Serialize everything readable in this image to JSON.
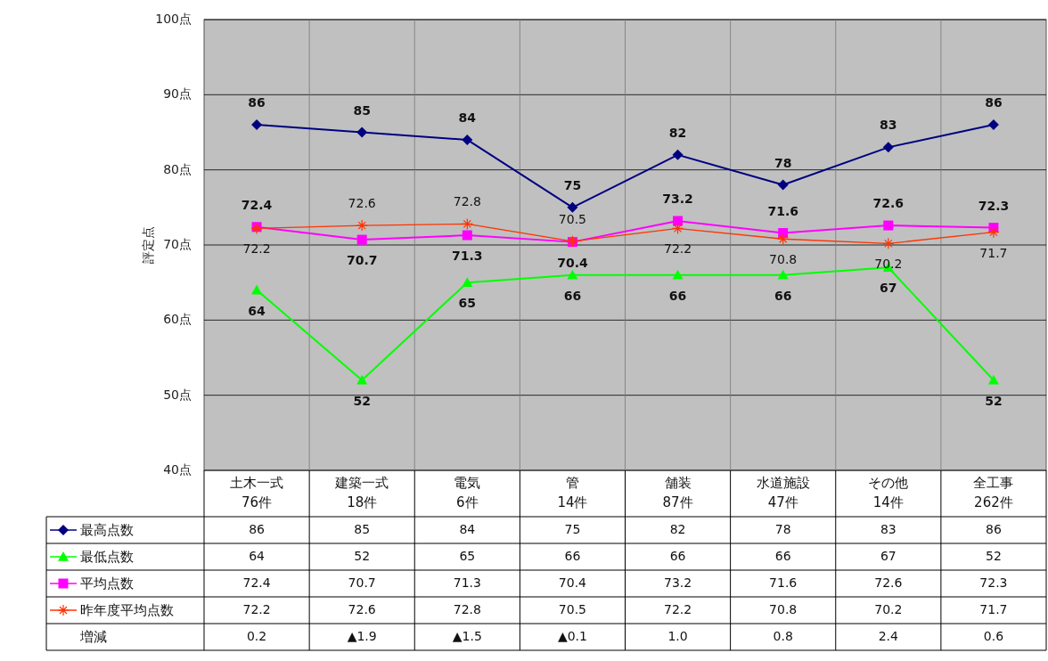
{
  "chart_data": {
    "type": "line",
    "ylabel": "評定点",
    "categories": [
      "土木一式\n76件",
      "建築一式\n18件",
      "電気\n6件",
      "管\n14件",
      "舗装\n87件",
      "水道施設\n47件",
      "その他\n14件",
      "全工事\n262件"
    ],
    "series": [
      {
        "name": "最高点数",
        "color": "#000080",
        "marker": "diamond",
        "values": [
          86,
          85,
          84,
          75,
          82,
          78,
          83,
          86
        ],
        "value_labels": [
          "86",
          "85",
          "84",
          "75",
          "82",
          "78",
          "83",
          "86"
        ]
      },
      {
        "name": "最低点数",
        "color": "#00ff00",
        "marker": "triangle",
        "values": [
          64,
          52,
          65,
          66,
          66,
          66,
          67,
          52
        ],
        "value_labels": [
          "64",
          "52",
          "65",
          "66",
          "66",
          "66",
          "67",
          "52"
        ]
      },
      {
        "name": "平均点数",
        "color": "#ff00ff",
        "marker": "square",
        "values": [
          72.4,
          70.7,
          71.3,
          70.4,
          73.2,
          71.6,
          72.6,
          72.3
        ],
        "value_labels": [
          "72.4",
          "70.7",
          "71.3",
          "70.4",
          "73.2",
          "71.6",
          "72.6",
          "72.3"
        ]
      },
      {
        "name": "昨年度平均点数",
        "color": "#ff3300",
        "marker": "cross",
        "values": [
          72.2,
          72.6,
          72.8,
          70.5,
          72.2,
          70.8,
          70.2,
          71.7
        ],
        "value_labels": [
          "72.2",
          "72.6",
          "72.8",
          "70.5",
          "72.2",
          "70.8",
          "70.2",
          "71.7"
        ]
      }
    ],
    "ylim": [
      40,
      100
    ],
    "yticks": [
      {
        "value": 40,
        "label": "40点"
      },
      {
        "value": 50,
        "label": "50点"
      },
      {
        "value": 60,
        "label": "60点"
      },
      {
        "value": 70,
        "label": "70点"
      },
      {
        "value": 80,
        "label": "80点"
      },
      {
        "value": 90,
        "label": "90点"
      },
      {
        "value": 100,
        "label": "100点"
      }
    ],
    "grid": true,
    "legend": "bottom",
    "annotations": [
      "86",
      "85",
      "84",
      "75",
      "82",
      "78",
      "83",
      "86",
      "64",
      "52",
      "65",
      "66",
      "66",
      "66",
      "67",
      "52",
      "72.4",
      "70.7",
      "71.3",
      "70.4",
      "73.2",
      "71.6",
      "72.6",
      "72.3",
      "72.2",
      "72.6",
      "72.8",
      "70.5",
      "72.2",
      "70.8",
      "70.2",
      "71.7",
      "増減",
      "0.2",
      "▲1.9",
      "▲1.5",
      "▲0.1",
      "1.0",
      "0.8",
      "2.4",
      "0.6"
    ]
  }
}
